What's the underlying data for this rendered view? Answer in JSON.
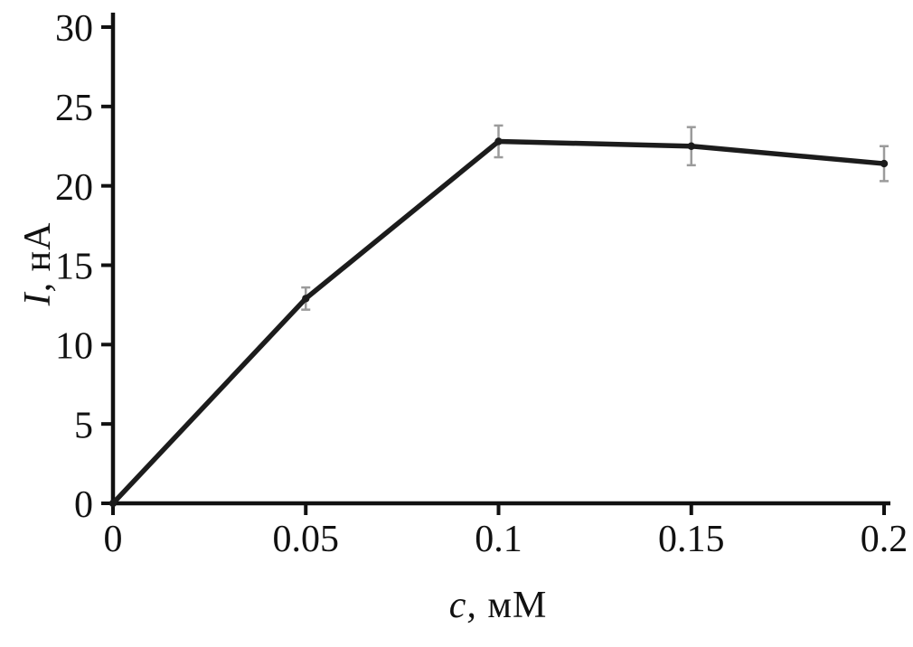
{
  "chart_data": {
    "type": "line",
    "title": "",
    "xlabel": "c, мМ",
    "ylabel": "I, нА",
    "x": [
      0,
      0.05,
      0.1,
      0.15,
      0.2
    ],
    "y": [
      0,
      12.9,
      22.8,
      22.5,
      21.4
    ],
    "yerr": [
      0,
      0.7,
      1.0,
      1.2,
      1.1
    ],
    "xticks": [
      0,
      0.05,
      0.1,
      0.15,
      0.2
    ],
    "xtick_labels": [
      "0",
      "0.05",
      "0.1",
      "0.15",
      "0.2"
    ],
    "yticks": [
      0,
      5,
      10,
      15,
      20,
      25,
      30
    ],
    "ytick_labels": [
      "0",
      "5",
      "10",
      "15",
      "20",
      "25",
      "30"
    ],
    "xlim": [
      0,
      0.2
    ],
    "ylim": [
      0,
      30
    ],
    "grid": false,
    "legend": false,
    "line_color": "#1c1c1c",
    "marker_color": "#1c1c1c",
    "error_color": "#9b9b9b",
    "axis_color": "#111111",
    "background": "#ffffff"
  }
}
